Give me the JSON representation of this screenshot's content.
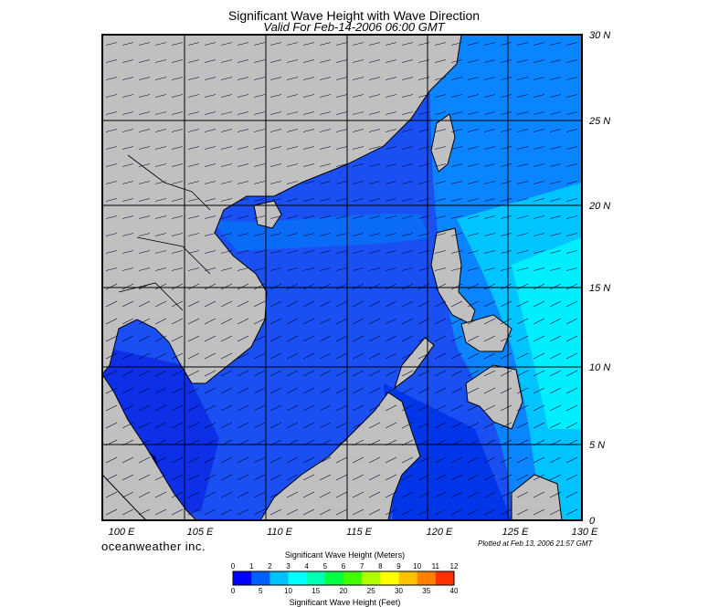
{
  "title": "Significant Wave Height with Wave Direction",
  "subtitle": "Valid For Feb-14-2006 06:00 GMT",
  "branding": "oceanweather inc.",
  "plotted_note": "Plotted at Feb 13, 2006 21:57 GMT",
  "map": {
    "lon_range": [
      100,
      130
    ],
    "lat_range": [
      0,
      30
    ],
    "lon_labels": [
      "100 E",
      "105 E",
      "110 E",
      "115 E",
      "120 E",
      "125 E",
      "130 E"
    ],
    "lat_labels": [
      "30 N",
      "25 N",
      "20 N",
      "15 N",
      "10 N",
      "5 N",
      "0"
    ],
    "land_color": "#c0c0c0",
    "sea_colors": [
      "#0000ee",
      "#1a55f5",
      "#0a8cff",
      "#00dcff",
      "#00f4ff"
    ]
  },
  "legend": {
    "title_meters": "Significant Wave Height (Meters)",
    "title_feet": "Significant Wave Height (Feet)",
    "meter_ticks": [
      "0",
      "1",
      "2",
      "3",
      "4",
      "5",
      "6",
      "7",
      "8",
      "9",
      "10",
      "11",
      "12"
    ],
    "feet_ticks": [
      "0",
      "5",
      "10",
      "15",
      "20",
      "25",
      "30",
      "35",
      "40"
    ],
    "colors": [
      "#0000ff",
      "#0060ff",
      "#00c0ff",
      "#00ffff",
      "#00ffb0",
      "#00ff40",
      "#40ff00",
      "#b0ff00",
      "#ffff00",
      "#ffc000",
      "#ff8000",
      "#ff3000"
    ]
  }
}
